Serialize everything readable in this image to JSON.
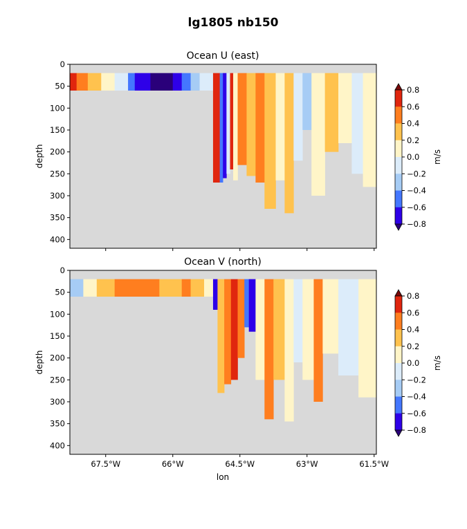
{
  "figure": {
    "suptitle": "lg1805 nb150",
    "xlabel": "lon"
  },
  "colors": {
    "land": "#d9d9d9",
    "scale": [
      "#2e00e8",
      "#4477ff",
      "#a6ccf5",
      "#dcecfa",
      "#fff5c8",
      "#ffc24e",
      "#ff7e1f",
      "#e0260e"
    ],
    "under": "#2a007a",
    "over": "#7a0a0a"
  },
  "chart_data": [
    {
      "type": "heatmap",
      "title": "Ocean U (east)",
      "ylabel": "depth",
      "ylim": [
        420,
        0
      ],
      "yticks": [
        "0",
        "50",
        "100",
        "150",
        "200",
        "250",
        "300",
        "350",
        "400"
      ],
      "xlim": [
        -68.3,
        -61.45
      ],
      "xticks": [],
      "colorbar": {
        "label": "m/s",
        "ticks": [
          "0.8",
          "0.6",
          "0.4",
          "0.2",
          "0.0",
          "−0.2",
          "−0.4",
          "−0.6",
          "−0.8"
        ],
        "levels": [
          -0.8,
          -0.6,
          -0.4,
          -0.2,
          0.0,
          0.2,
          0.4,
          0.6,
          0.8
        ],
        "extend": "both"
      },
      "columns": [
        {
          "lon": [
            -68.3,
            -68.15
          ],
          "bottom": 60,
          "values": [
            0.65
          ]
        },
        {
          "lon": [
            -68.15,
            -67.9
          ],
          "bottom": 60,
          "values": [
            0.5
          ]
        },
        {
          "lon": [
            -67.9,
            -67.6
          ],
          "bottom": 60,
          "values": [
            0.3
          ]
        },
        {
          "lon": [
            -67.6,
            -67.3
          ],
          "bottom": 60,
          "values": [
            0.1
          ]
        },
        {
          "lon": [
            -67.3,
            -67.0
          ],
          "bottom": 60,
          "values": [
            -0.1
          ]
        },
        {
          "lon": [
            -67.0,
            -66.85
          ],
          "bottom": 60,
          "values": [
            -0.5
          ]
        },
        {
          "lon": [
            -66.85,
            -66.5
          ],
          "bottom": 60,
          "values": [
            -0.7
          ]
        },
        {
          "lon": [
            -66.5,
            -66.0
          ],
          "bottom": 60,
          "values": [
            -0.85
          ]
        },
        {
          "lon": [
            -66.0,
            -65.8
          ],
          "bottom": 60,
          "values": [
            -0.7
          ]
        },
        {
          "lon": [
            -65.8,
            -65.6
          ],
          "bottom": 60,
          "values": [
            -0.5
          ]
        },
        {
          "lon": [
            -65.6,
            -65.4
          ],
          "bottom": 60,
          "values": [
            -0.3
          ]
        },
        {
          "lon": [
            -65.4,
            -65.1
          ],
          "bottom": 60,
          "values": [
            -0.1
          ]
        },
        {
          "lon": [
            -65.1,
            -64.95
          ],
          "bottom": 270,
          "values": [
            0.7
          ]
        },
        {
          "lon": [
            -64.95,
            -64.88
          ],
          "bottom": 270,
          "values": [
            -0.5
          ]
        },
        {
          "lon": [
            -64.88,
            -64.8
          ],
          "bottom": 260,
          "values": [
            -0.7
          ]
        },
        {
          "lon": [
            -64.8,
            -64.72
          ],
          "bottom": 250,
          "values": [
            -0.1
          ]
        },
        {
          "lon": [
            -64.72,
            -64.65
          ],
          "bottom": 240,
          "values": [
            0.7
          ]
        },
        {
          "lon": [
            -64.65,
            -64.55
          ],
          "bottom": 265,
          "values": [
            0.1
          ]
        },
        {
          "lon": [
            -64.55,
            -64.35
          ],
          "bottom": 230,
          "values": [
            0.5
          ]
        },
        {
          "lon": [
            -64.35,
            -64.15
          ],
          "bottom": 255,
          "values": [
            0.3
          ]
        },
        {
          "lon": [
            -64.15,
            -63.95
          ],
          "bottom": 270,
          "values": [
            0.5
          ]
        },
        {
          "lon": [
            -63.95,
            -63.7
          ],
          "bottom": 330,
          "values": [
            0.3
          ]
        },
        {
          "lon": [
            -63.7,
            -63.5
          ],
          "bottom": 265,
          "values": [
            0.1
          ]
        },
        {
          "lon": [
            -63.5,
            -63.3
          ],
          "bottom": 340,
          "values": [
            0.3
          ]
        },
        {
          "lon": [
            -63.3,
            -63.1
          ],
          "bottom": 220,
          "values": [
            -0.1
          ]
        },
        {
          "lon": [
            -63.1,
            -62.9
          ],
          "bottom": 150,
          "values": [
            -0.3
          ]
        },
        {
          "lon": [
            -62.9,
            -62.6
          ],
          "bottom": 300,
          "values": [
            0.1
          ]
        },
        {
          "lon": [
            -62.6,
            -62.3
          ],
          "bottom": 200,
          "values": [
            0.3
          ]
        },
        {
          "lon": [
            -62.3,
            -62.0
          ],
          "bottom": 180,
          "values": [
            0.1
          ]
        },
        {
          "lon": [
            -62.0,
            -61.75
          ],
          "bottom": 250,
          "values": [
            -0.1
          ]
        },
        {
          "lon": [
            -61.75,
            -61.45
          ],
          "bottom": 280,
          "values": [
            0.1
          ]
        }
      ]
    },
    {
      "type": "heatmap",
      "title": "Ocean V (north)",
      "ylabel": "depth",
      "ylim": [
        420,
        0
      ],
      "yticks": [
        "0",
        "50",
        "100",
        "150",
        "200",
        "250",
        "300",
        "350",
        "400"
      ],
      "xlim": [
        -68.3,
        -61.45
      ],
      "xticks": [
        "67.5°W",
        "66°W",
        "64.5°W",
        "63°W",
        "61.5°W"
      ],
      "xtick_values": [
        -67.5,
        -66.0,
        -64.5,
        -63.0,
        -61.5
      ],
      "colorbar": {
        "label": "m/s",
        "ticks": [
          "0.8",
          "0.6",
          "0.4",
          "0.2",
          "0.0",
          "−0.2",
          "−0.4",
          "−0.6",
          "−0.8"
        ],
        "levels": [
          -0.8,
          -0.6,
          -0.4,
          -0.2,
          0.0,
          0.2,
          0.4,
          0.6,
          0.8
        ],
        "extend": "both"
      },
      "columns": [
        {
          "lon": [
            -68.3,
            -68.0
          ],
          "bottom": 60,
          "values": [
            -0.3
          ]
        },
        {
          "lon": [
            -68.0,
            -67.7
          ],
          "bottom": 60,
          "values": [
            0.1
          ]
        },
        {
          "lon": [
            -67.7,
            -67.3
          ],
          "bottom": 60,
          "values": [
            0.3
          ]
        },
        {
          "lon": [
            -67.3,
            -66.3
          ],
          "bottom": 60,
          "values": [
            0.5
          ]
        },
        {
          "lon": [
            -66.3,
            -65.8
          ],
          "bottom": 60,
          "values": [
            0.3
          ]
        },
        {
          "lon": [
            -65.8,
            -65.6
          ],
          "bottom": 60,
          "values": [
            0.5
          ]
        },
        {
          "lon": [
            -65.6,
            -65.3
          ],
          "bottom": 60,
          "values": [
            0.3
          ]
        },
        {
          "lon": [
            -65.3,
            -65.1
          ],
          "bottom": 60,
          "values": [
            0.1
          ]
        },
        {
          "lon": [
            -65.1,
            -65.0
          ],
          "bottom": 90,
          "values": [
            -0.7
          ]
        },
        {
          "lon": [
            -65.0,
            -64.85
          ],
          "bottom": 280,
          "values": [
            0.3
          ]
        },
        {
          "lon": [
            -64.85,
            -64.7
          ],
          "bottom": 260,
          "values": [
            0.5
          ]
        },
        {
          "lon": [
            -64.7,
            -64.55
          ],
          "bottom": 250,
          "values": [
            0.7
          ]
        },
        {
          "lon": [
            -64.55,
            -64.4
          ],
          "bottom": 200,
          "values": [
            0.5
          ]
        },
        {
          "lon": [
            -64.4,
            -64.3
          ],
          "bottom": 130,
          "values": [
            -0.5
          ]
        },
        {
          "lon": [
            -64.3,
            -64.15
          ],
          "bottom": 140,
          "values": [
            -0.7
          ]
        },
        {
          "lon": [
            -64.15,
            -63.95
          ],
          "bottom": 250,
          "values": [
            0.1
          ]
        },
        {
          "lon": [
            -63.95,
            -63.75
          ],
          "bottom": 340,
          "values": [
            0.5
          ]
        },
        {
          "lon": [
            -63.75,
            -63.5
          ],
          "bottom": 250,
          "values": [
            0.3
          ]
        },
        {
          "lon": [
            -63.5,
            -63.3
          ],
          "bottom": 345,
          "values": [
            0.1
          ]
        },
        {
          "lon": [
            -63.3,
            -63.1
          ],
          "bottom": 210,
          "values": [
            -0.1
          ]
        },
        {
          "lon": [
            -63.1,
            -62.85
          ],
          "bottom": 250,
          "values": [
            0.1
          ]
        },
        {
          "lon": [
            -62.85,
            -62.65
          ],
          "bottom": 300,
          "values": [
            0.5
          ]
        },
        {
          "lon": [
            -62.65,
            -62.3
          ],
          "bottom": 190,
          "values": [
            0.1
          ]
        },
        {
          "lon": [
            -62.3,
            -61.85
          ],
          "bottom": 240,
          "values": [
            -0.1
          ]
        },
        {
          "lon": [
            -61.85,
            -61.45
          ],
          "bottom": 290,
          "values": [
            0.1
          ]
        }
      ]
    }
  ]
}
